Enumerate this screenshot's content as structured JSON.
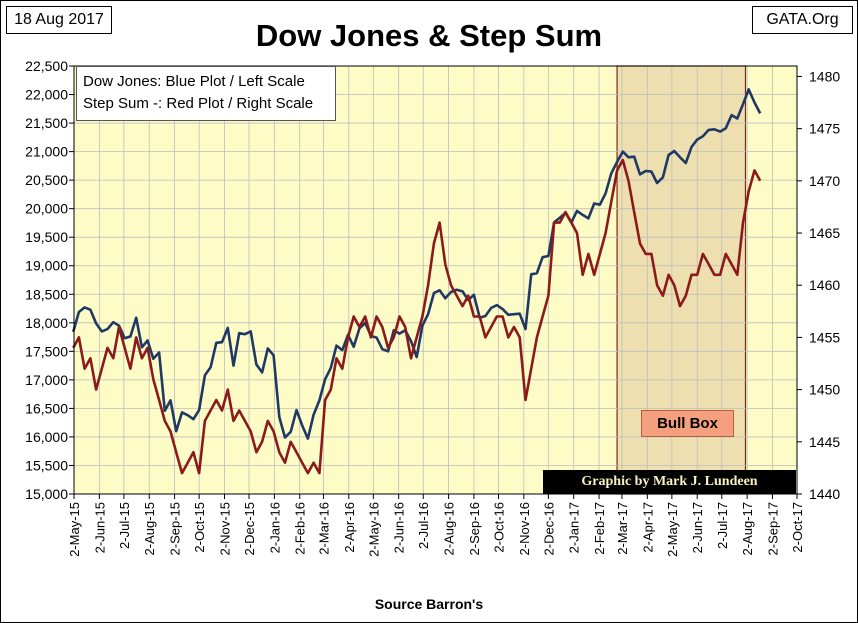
{
  "header": {
    "date": "18 Aug 2017",
    "site": "GATA.Org"
  },
  "chart_data": {
    "type": "line",
    "title": "Dow Jones & Step Sum",
    "legend": {
      "line1": "Dow Jones: Blue Plot / Left Scale",
      "line2": "Step Sum -: Red Plot / Right Scale",
      "placement": "top-left"
    },
    "xlabel": "Source Barron's",
    "x_ticks": [
      "2-May-15",
      "2-Jun-15",
      "2-Jul-15",
      "2-Aug-15",
      "2-Sep-15",
      "2-Oct-15",
      "2-Nov-15",
      "2-Dec-15",
      "2-Jan-16",
      "2-Feb-16",
      "2-Mar-16",
      "2-Apr-16",
      "2-May-16",
      "2-Jun-16",
      "2-Jul-16",
      "2-Aug-16",
      "2-Sep-16",
      "2-Oct-16",
      "2-Nov-16",
      "2-Dec-16",
      "2-Jan-17",
      "2-Feb-17",
      "2-Mar-17",
      "2-Apr-17",
      "2-May-17",
      "2-Jun-17",
      "2-Jul-17",
      "2-Aug-17",
      "2-Sep-17",
      "2-Oct-17"
    ],
    "y_left_ticks": [
      "15,000",
      "15,500",
      "16,000",
      "16,500",
      "17,000",
      "17,500",
      "18,000",
      "18,500",
      "19,000",
      "19,500",
      "20,000",
      "20,500",
      "21,000",
      "21,500",
      "22,000",
      "22,500"
    ],
    "y_right_ticks": [
      "1440",
      "1445",
      "1450",
      "1455",
      "1460",
      "1465",
      "1470",
      "1475",
      "1480"
    ],
    "ylim_left": [
      15000,
      22500
    ],
    "ylim_right": [
      1440,
      1481
    ],
    "grid": true,
    "series": [
      {
        "name": "Dow Jones",
        "axis": "left",
        "color": "#1f3864",
        "points": [
          [
            "2015-05-01",
            17840
          ],
          [
            "2015-05-08",
            18190
          ],
          [
            "2015-05-15",
            18270
          ],
          [
            "2015-05-22",
            18230
          ],
          [
            "2015-05-29",
            17990
          ],
          [
            "2015-06-05",
            17850
          ],
          [
            "2015-06-12",
            17890
          ],
          [
            "2015-06-19",
            18010
          ],
          [
            "2015-06-26",
            17950
          ],
          [
            "2015-07-03",
            17730
          ],
          [
            "2015-07-10",
            17760
          ],
          [
            "2015-07-17",
            18090
          ],
          [
            "2015-07-24",
            17570
          ],
          [
            "2015-07-31",
            17690
          ],
          [
            "2015-08-07",
            17370
          ],
          [
            "2015-08-14",
            17480
          ],
          [
            "2015-08-21",
            16460
          ],
          [
            "2015-08-28",
            16640
          ],
          [
            "2015-09-04",
            16100
          ],
          [
            "2015-09-11",
            16430
          ],
          [
            "2015-09-18",
            16380
          ],
          [
            "2015-09-25",
            16310
          ],
          [
            "2015-10-02",
            16470
          ],
          [
            "2015-10-09",
            17080
          ],
          [
            "2015-10-16",
            17220
          ],
          [
            "2015-10-23",
            17650
          ],
          [
            "2015-10-30",
            17660
          ],
          [
            "2015-11-06",
            17910
          ],
          [
            "2015-11-13",
            17250
          ],
          [
            "2015-11-20",
            17820
          ],
          [
            "2015-11-27",
            17800
          ],
          [
            "2015-12-04",
            17850
          ],
          [
            "2015-12-11",
            17270
          ],
          [
            "2015-12-18",
            17130
          ],
          [
            "2015-12-25",
            17550
          ],
          [
            "2016-01-01",
            17430
          ],
          [
            "2016-01-08",
            16350
          ],
          [
            "2016-01-15",
            15990
          ],
          [
            "2016-01-22",
            16090
          ],
          [
            "2016-01-29",
            16470
          ],
          [
            "2016-02-05",
            16200
          ],
          [
            "2016-02-12",
            15970
          ],
          [
            "2016-02-19",
            16390
          ],
          [
            "2016-02-26",
            16640
          ],
          [
            "2016-03-04",
            17010
          ],
          [
            "2016-03-11",
            17210
          ],
          [
            "2016-03-18",
            17600
          ],
          [
            "2016-03-25",
            17520
          ],
          [
            "2016-04-01",
            17790
          ],
          [
            "2016-04-08",
            17580
          ],
          [
            "2016-04-15",
            17900
          ],
          [
            "2016-04-22",
            18000
          ],
          [
            "2016-04-29",
            17770
          ],
          [
            "2016-05-06",
            17740
          ],
          [
            "2016-05-13",
            17540
          ],
          [
            "2016-05-20",
            17500
          ],
          [
            "2016-05-27",
            17870
          ],
          [
            "2016-06-03",
            17810
          ],
          [
            "2016-06-10",
            17870
          ],
          [
            "2016-06-17",
            17680
          ],
          [
            "2016-06-24",
            17400
          ],
          [
            "2016-07-01",
            17950
          ],
          [
            "2016-07-08",
            18150
          ],
          [
            "2016-07-15",
            18520
          ],
          [
            "2016-07-22",
            18570
          ],
          [
            "2016-07-29",
            18430
          ],
          [
            "2016-08-05",
            18540
          ],
          [
            "2016-08-12",
            18580
          ],
          [
            "2016-08-19",
            18550
          ],
          [
            "2016-08-26",
            18400
          ],
          [
            "2016-09-02",
            18490
          ],
          [
            "2016-09-09",
            18090
          ],
          [
            "2016-09-16",
            18120
          ],
          [
            "2016-09-23",
            18260
          ],
          [
            "2016-09-30",
            18310
          ],
          [
            "2016-10-07",
            18240
          ],
          [
            "2016-10-14",
            18140
          ],
          [
            "2016-10-21",
            18150
          ],
          [
            "2016-10-28",
            18160
          ],
          [
            "2016-11-04",
            17890
          ],
          [
            "2016-11-11",
            18850
          ],
          [
            "2016-11-18",
            18870
          ],
          [
            "2016-11-25",
            19150
          ],
          [
            "2016-12-02",
            19170
          ],
          [
            "2016-12-09",
            19760
          ],
          [
            "2016-12-16",
            19840
          ],
          [
            "2016-12-23",
            19930
          ],
          [
            "2016-12-30",
            19760
          ],
          [
            "2017-01-06",
            19960
          ],
          [
            "2017-01-13",
            19890
          ],
          [
            "2017-01-20",
            19830
          ],
          [
            "2017-01-27",
            20090
          ],
          [
            "2017-02-03",
            20070
          ],
          [
            "2017-02-10",
            20270
          ],
          [
            "2017-02-17",
            20620
          ],
          [
            "2017-02-24",
            20820
          ],
          [
            "2017-03-03",
            21000
          ],
          [
            "2017-03-10",
            20900
          ],
          [
            "2017-03-17",
            20910
          ],
          [
            "2017-03-24",
            20600
          ],
          [
            "2017-03-31",
            20660
          ],
          [
            "2017-04-07",
            20650
          ],
          [
            "2017-04-14",
            20450
          ],
          [
            "2017-04-21",
            20550
          ],
          [
            "2017-04-28",
            20940
          ],
          [
            "2017-05-05",
            21010
          ],
          [
            "2017-05-12",
            20900
          ],
          [
            "2017-05-19",
            20800
          ],
          [
            "2017-05-26",
            21080
          ],
          [
            "2017-06-02",
            21210
          ],
          [
            "2017-06-09",
            21270
          ],
          [
            "2017-06-16",
            21380
          ],
          [
            "2017-06-23",
            21390
          ],
          [
            "2017-06-30",
            21350
          ],
          [
            "2017-07-07",
            21410
          ],
          [
            "2017-07-14",
            21640
          ],
          [
            "2017-07-21",
            21580
          ],
          [
            "2017-07-28",
            21830
          ],
          [
            "2017-08-04",
            22090
          ],
          [
            "2017-08-11",
            21860
          ],
          [
            "2017-08-18",
            21670
          ]
        ]
      },
      {
        "name": "Step Sum",
        "axis": "right",
        "color": "#8b1a1a",
        "points": [
          [
            "2015-05-01",
            1454
          ],
          [
            "2015-05-08",
            1455
          ],
          [
            "2015-05-15",
            1452
          ],
          [
            "2015-05-22",
            1453
          ],
          [
            "2015-05-29",
            1450
          ],
          [
            "2015-06-05",
            1452
          ],
          [
            "2015-06-12",
            1454
          ],
          [
            "2015-06-19",
            1453
          ],
          [
            "2015-06-26",
            1456
          ],
          [
            "2015-07-03",
            1454
          ],
          [
            "2015-07-10",
            1452
          ],
          [
            "2015-07-17",
            1455
          ],
          [
            "2015-07-24",
            1453
          ],
          [
            "2015-07-31",
            1454
          ],
          [
            "2015-08-07",
            1451
          ],
          [
            "2015-08-14",
            1449
          ],
          [
            "2015-08-21",
            1447
          ],
          [
            "2015-08-28",
            1446
          ],
          [
            "2015-09-04",
            1444
          ],
          [
            "2015-09-11",
            1442
          ],
          [
            "2015-09-18",
            1443
          ],
          [
            "2015-09-25",
            1444
          ],
          [
            "2015-10-02",
            1442
          ],
          [
            "2015-10-09",
            1447
          ],
          [
            "2015-10-16",
            1448
          ],
          [
            "2015-10-23",
            1449
          ],
          [
            "2015-10-30",
            1448
          ],
          [
            "2015-11-06",
            1450
          ],
          [
            "2015-11-13",
            1447
          ],
          [
            "2015-11-20",
            1448
          ],
          [
            "2015-11-27",
            1447
          ],
          [
            "2015-12-04",
            1446
          ],
          [
            "2015-12-11",
            1444
          ],
          [
            "2015-12-18",
            1445
          ],
          [
            "2015-12-25",
            1447
          ],
          [
            "2016-01-01",
            1446
          ],
          [
            "2016-01-08",
            1444
          ],
          [
            "2016-01-15",
            1443
          ],
          [
            "2016-01-22",
            1445
          ],
          [
            "2016-01-29",
            1444
          ],
          [
            "2016-02-05",
            1443
          ],
          [
            "2016-02-12",
            1442
          ],
          [
            "2016-02-19",
            1443
          ],
          [
            "2016-02-26",
            1442
          ],
          [
            "2016-03-04",
            1449
          ],
          [
            "2016-03-11",
            1450
          ],
          [
            "2016-03-18",
            1453
          ],
          [
            "2016-03-25",
            1452
          ],
          [
            "2016-04-01",
            1455
          ],
          [
            "2016-04-08",
            1457
          ],
          [
            "2016-04-15",
            1456
          ],
          [
            "2016-04-22",
            1457
          ],
          [
            "2016-04-29",
            1455
          ],
          [
            "2016-05-06",
            1457
          ],
          [
            "2016-05-13",
            1456
          ],
          [
            "2016-05-20",
            1454
          ],
          [
            "2016-05-27",
            1455
          ],
          [
            "2016-06-03",
            1457
          ],
          [
            "2016-06-10",
            1456
          ],
          [
            "2016-06-17",
            1453
          ],
          [
            "2016-06-24",
            1455
          ],
          [
            "2016-07-01",
            1457
          ],
          [
            "2016-07-08",
            1460
          ],
          [
            "2016-07-15",
            1464
          ],
          [
            "2016-07-22",
            1466
          ],
          [
            "2016-07-29",
            1462
          ],
          [
            "2016-08-05",
            1460
          ],
          [
            "2016-08-12",
            1459
          ],
          [
            "2016-08-19",
            1458
          ],
          [
            "2016-08-26",
            1459
          ],
          [
            "2016-09-02",
            1457
          ],
          [
            "2016-09-09",
            1457
          ],
          [
            "2016-09-16",
            1455
          ],
          [
            "2016-09-23",
            1456
          ],
          [
            "2016-09-30",
            1457
          ],
          [
            "2016-10-07",
            1457
          ],
          [
            "2016-10-14",
            1455
          ],
          [
            "2016-10-21",
            1456
          ],
          [
            "2016-10-28",
            1455
          ],
          [
            "2016-11-04",
            1449
          ],
          [
            "2016-11-11",
            1452
          ],
          [
            "2016-11-18",
            1455
          ],
          [
            "2016-11-25",
            1457
          ],
          [
            "2016-12-02",
            1459
          ],
          [
            "2016-12-09",
            1466
          ],
          [
            "2016-12-16",
            1466
          ],
          [
            "2016-12-23",
            1467
          ],
          [
            "2016-12-30",
            1466
          ],
          [
            "2017-01-06",
            1465
          ],
          [
            "2017-01-13",
            1461
          ],
          [
            "2017-01-20",
            1463
          ],
          [
            "2017-01-27",
            1461
          ],
          [
            "2017-02-03",
            1463
          ],
          [
            "2017-02-10",
            1465
          ],
          [
            "2017-02-17",
            1468
          ],
          [
            "2017-02-24",
            1471
          ],
          [
            "2017-03-03",
            1472
          ],
          [
            "2017-03-10",
            1470
          ],
          [
            "2017-03-17",
            1467
          ],
          [
            "2017-03-24",
            1464
          ],
          [
            "2017-03-31",
            1463
          ],
          [
            "2017-04-07",
            1463
          ],
          [
            "2017-04-14",
            1460
          ],
          [
            "2017-04-21",
            1459
          ],
          [
            "2017-04-28",
            1461
          ],
          [
            "2017-05-05",
            1460
          ],
          [
            "2017-05-12",
            1458
          ],
          [
            "2017-05-19",
            1459
          ],
          [
            "2017-05-26",
            1461
          ],
          [
            "2017-06-02",
            1461
          ],
          [
            "2017-06-09",
            1463
          ],
          [
            "2017-06-16",
            1462
          ],
          [
            "2017-06-23",
            1461
          ],
          [
            "2017-06-30",
            1461
          ],
          [
            "2017-07-07",
            1463
          ],
          [
            "2017-07-14",
            1462
          ],
          [
            "2017-07-21",
            1461
          ],
          [
            "2017-07-28",
            1466
          ],
          [
            "2017-08-04",
            1469
          ],
          [
            "2017-08-11",
            1471
          ],
          [
            "2017-08-18",
            1470
          ]
        ]
      }
    ],
    "annotations": {
      "highlight_region": {
        "label": "Bull Box",
        "start": "2017-02-24",
        "end": "2017-07-31"
      },
      "credit": "Graphic by Mark J. Lundeen"
    },
    "colors": {
      "plot_background": "#fefcc6",
      "highlight_fill": "#eedfb0",
      "highlight_border": "#7a2a10",
      "grid": "#bdbdbd"
    }
  }
}
